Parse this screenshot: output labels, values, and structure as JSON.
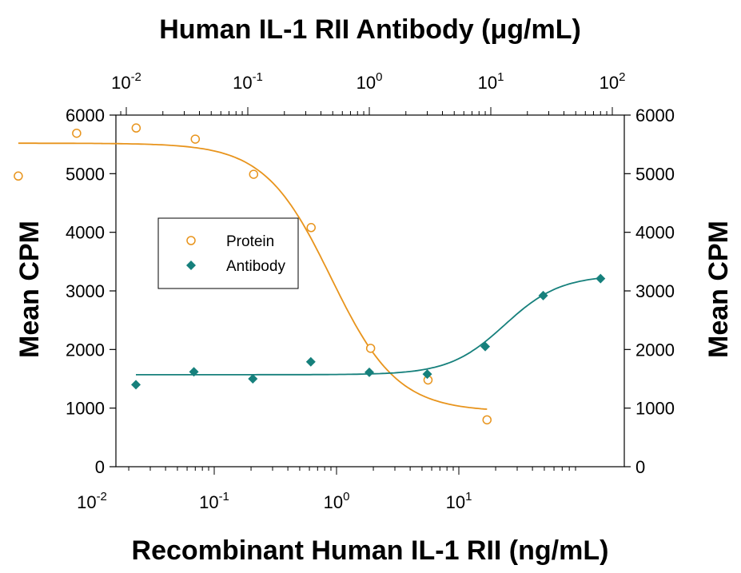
{
  "chart_data": {
    "type": "scatter",
    "top_axis_title": "Human IL-1 RII Antibody (μg/mL)",
    "bottom_axis_title": "Recombinant Human IL-1 RII (ng/mL)",
    "ylabel_left": "Mean CPM",
    "ylabel_right": "Mean CPM",
    "ylim": [
      0,
      6000
    ],
    "yticks": [
      "0",
      "1000",
      "2000",
      "3000",
      "4000",
      "5000",
      "6000"
    ],
    "x_bottom_scale": "log",
    "x_bottom_ticks": [
      {
        "base": "10",
        "exp": "-2"
      },
      {
        "base": "10",
        "exp": "-1"
      },
      {
        "base": "10",
        "exp": "0"
      },
      {
        "base": "10",
        "exp": "1"
      }
    ],
    "x_top_scale": "log",
    "x_top_ticks": [
      {
        "base": "10",
        "exp": "-2"
      },
      {
        "base": "10",
        "exp": "-1"
      },
      {
        "base": "10",
        "exp": "0"
      },
      {
        "base": "10",
        "exp": "1"
      },
      {
        "base": "10",
        "exp": "2"
      }
    ],
    "legend_position": "left-middle",
    "series": [
      {
        "name": "Protein",
        "marker": "open-circle",
        "color": "#E8941C",
        "axis": "bottom",
        "x": [
          0.0025,
          0.0075,
          0.023,
          0.07,
          0.21,
          0.62,
          1.9,
          5.6,
          17
        ],
        "y": [
          4960,
          5690,
          5780,
          5590,
          4990,
          4080,
          2020,
          1480,
          800
        ],
        "fit": "decreasing sigmoid, about 5500 CPM at low dose falling to about 940 CPM, midpoint near 0.9 ng/mL"
      },
      {
        "name": "Antibody",
        "marker": "filled-diamond",
        "color": "#16807C",
        "axis": "top",
        "x": [
          0.012,
          0.036,
          0.11,
          0.33,
          1.0,
          3.0,
          9.0,
          27,
          80
        ],
        "y": [
          1400,
          1620,
          1500,
          1790,
          1610,
          1580,
          2050,
          2920,
          3210
        ],
        "fit": "increasing sigmoid, about 1570 CPM at low dose rising to about 3270 CPM, midpoint near 13 μg/mL"
      }
    ]
  },
  "colors": {
    "protein": "#E8941C",
    "antibody": "#16807C"
  }
}
